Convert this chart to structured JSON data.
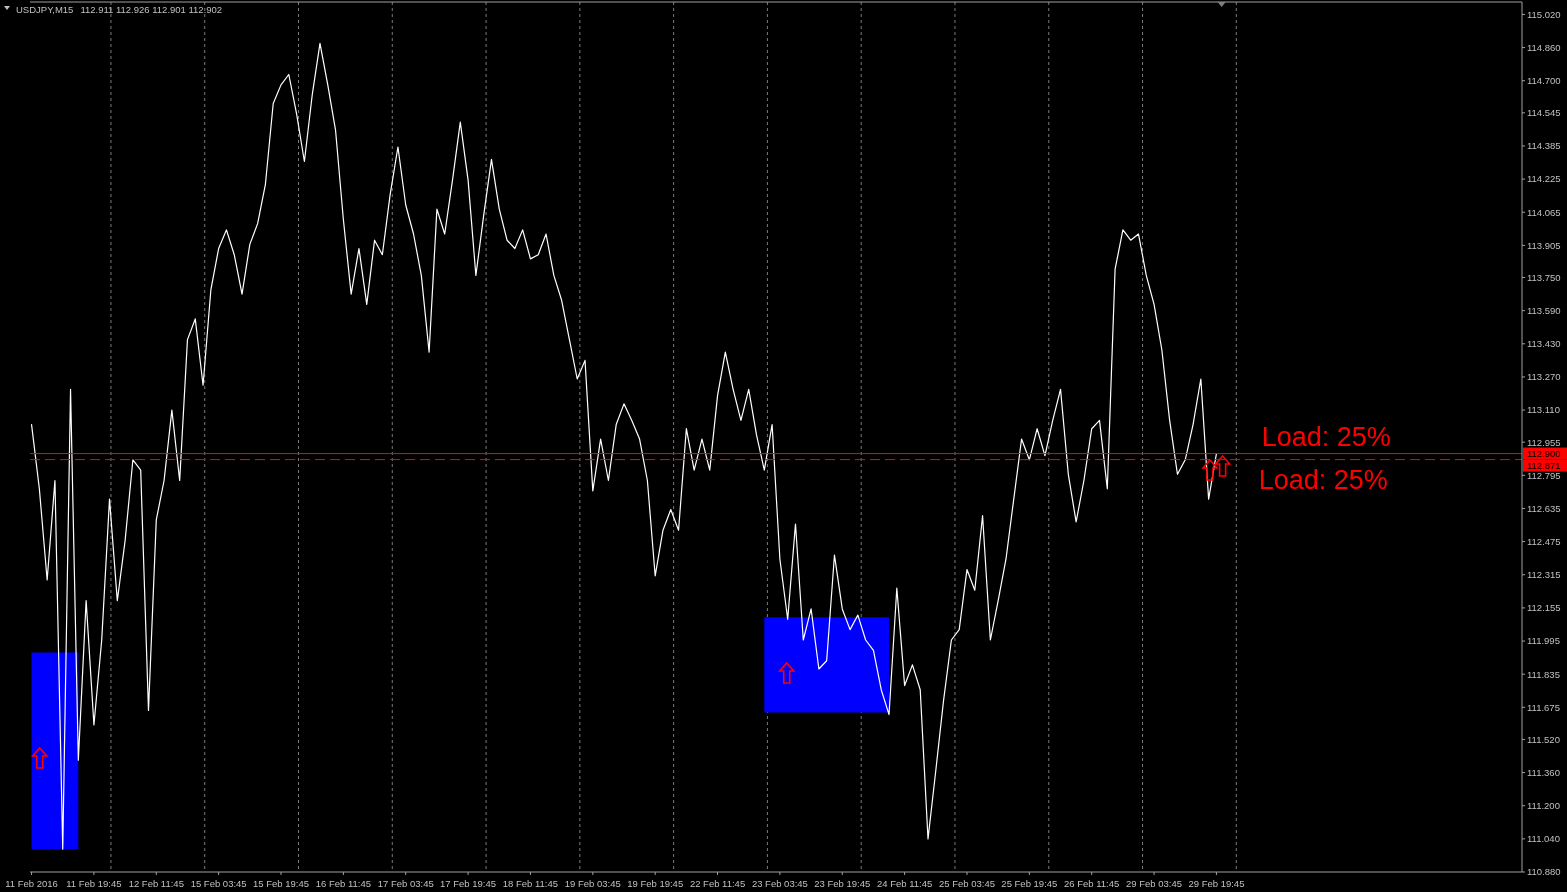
{
  "chart_data": {
    "type": "line",
    "title": "USDJPY,M15",
    "subtitle": "112.911 112.926 112.901 112.902",
    "categories": [
      "11 Feb 2016",
      null,
      null,
      null,
      null,
      null,
      null,
      null,
      "11 Feb 19:45",
      null,
      null,
      null,
      null,
      null,
      null,
      null,
      "12 Feb 11:45",
      null,
      null,
      null,
      null,
      null,
      null,
      null,
      "15 Feb 03:45",
      null,
      null,
      null,
      null,
      null,
      null,
      null,
      "15 Feb 19:45",
      null,
      null,
      null,
      null,
      null,
      null,
      null,
      "16 Feb 11:45",
      null,
      null,
      null,
      null,
      null,
      null,
      null,
      "17 Feb 03:45",
      null,
      null,
      null,
      null,
      null,
      null,
      null,
      "17 Feb 19:45",
      null,
      null,
      null,
      null,
      null,
      null,
      null,
      "18 Feb 11:45",
      null,
      null,
      null,
      null,
      null,
      null,
      null,
      "19 Feb 03:45",
      null,
      null,
      null,
      null,
      null,
      null,
      null,
      "19 Feb 19:45",
      null,
      null,
      null,
      null,
      null,
      null,
      null,
      "22 Feb 11:45",
      null,
      null,
      null,
      null,
      null,
      null,
      null,
      "23 Feb 03:45",
      null,
      null,
      null,
      null,
      null,
      null,
      null,
      "23 Feb 19:45",
      null,
      null,
      null,
      null,
      null,
      null,
      null,
      "24 Feb 11:45",
      null,
      null,
      null,
      null,
      null,
      null,
      null,
      "25 Feb 03:45",
      null,
      null,
      null,
      null,
      null,
      null,
      null,
      "25 Feb 19:45",
      null,
      null,
      null,
      null,
      null,
      null,
      null,
      "26 Feb 11:45",
      null,
      null,
      null,
      null,
      null,
      null,
      null,
      "29 Feb 03:45",
      null,
      null,
      null,
      null,
      null,
      null,
      null,
      "29 Feb 19:45",
      null,
      null,
      null,
      null,
      null,
      null,
      null,
      null,
      null,
      null,
      null,
      null,
      null,
      null,
      null,
      null,
      null,
      null,
      null,
      null,
      null,
      null,
      null,
      null,
      null,
      null,
      null,
      null,
      null,
      null,
      null,
      null,
      null,
      null,
      null,
      null,
      null,
      null,
      null
    ],
    "ylim": [
      110.88,
      115.08
    ],
    "yticks": [
      {
        "value": 115.02,
        "label": "115.020"
      },
      {
        "value": 114.86,
        "label": "114.860"
      },
      {
        "value": 114.7,
        "label": "114.700"
      },
      {
        "value": 114.545,
        "label": "114.545"
      },
      {
        "value": 114.385,
        "label": "114.385"
      },
      {
        "value": 114.225,
        "label": "114.225"
      },
      {
        "value": 114.065,
        "label": "114.065"
      },
      {
        "value": 113.905,
        "label": "113.905"
      },
      {
        "value": 113.75,
        "label": "113.750"
      },
      {
        "value": 113.59,
        "label": "113.590"
      },
      {
        "value": 113.43,
        "label": "113.430"
      },
      {
        "value": 113.27,
        "label": "113.270"
      },
      {
        "value": 113.11,
        "label": "113.110"
      },
      {
        "value": 112.955,
        "label": "112.955"
      },
      {
        "value": 112.795,
        "label": "112.795"
      },
      {
        "value": 112.635,
        "label": "112.635"
      },
      {
        "value": 112.475,
        "label": "112.475"
      },
      {
        "value": 112.315,
        "label": "112.315"
      },
      {
        "value": 112.155,
        "label": "112.155"
      },
      {
        "value": 111.995,
        "label": "111.995"
      },
      {
        "value": 111.835,
        "label": "111.835"
      },
      {
        "value": 111.675,
        "label": "111.675"
      },
      {
        "value": 111.52,
        "label": "111.520"
      },
      {
        "value": 111.36,
        "label": "111.360"
      },
      {
        "value": 111.2,
        "label": "111.200"
      },
      {
        "value": 111.04,
        "label": "111.040"
      },
      {
        "value": 110.88,
        "label": "110.880"
      }
    ],
    "series": [
      {
        "type": "area",
        "color": "#0000ff",
        "values": [
          null,
          null,
          null,
          null,
          null,
          null,
          null,
          null,
          null,
          null,
          null,
          null,
          null,
          null,
          null,
          null,
          null,
          null,
          null,
          null,
          null,
          null,
          null,
          null,
          null,
          null,
          null,
          null,
          null,
          null,
          null,
          null,
          null,
          null,
          null,
          null,
          null,
          null,
          null,
          null,
          null,
          null,
          null,
          null,
          null,
          null,
          null,
          null,
          null,
          null,
          null,
          null,
          null,
          null,
          null,
          null,
          null,
          null,
          null,
          null,
          null,
          null,
          null,
          null,
          null,
          null,
          null,
          null,
          null,
          null,
          null,
          null,
          null,
          null,
          null,
          null,
          null,
          null,
          null,
          null,
          null,
          null,
          null,
          null,
          null,
          null,
          null,
          null,
          null,
          null,
          null,
          null,
          null,
          null,
          null,
          null,
          null,
          null,
          null,
          null,
          null,
          null,
          null,
          null,
          null,
          null,
          null,
          null,
          null,
          null,
          null,
          null,
          null,
          null,
          null,
          null,
          null,
          null,
          null,
          null,
          null,
          null,
          null,
          null,
          null,
          null,
          null,
          null,
          null,
          null,
          null,
          null,
          null,
          null,
          null,
          null,
          null,
          null,
          null,
          null,
          null,
          null,
          null,
          null,
          null,
          null,
          null,
          null,
          null,
          null,
          null,
          null,
          null,
          null,
          null,
          null,
          null,
          null,
          null,
          null,
          null,
          null,
          null,
          null,
          null,
          null,
          null,
          null,
          null,
          null,
          null,
          null,
          null,
          null,
          null,
          null,
          null,
          null,
          null,
          null,
          null,
          null,
          null,
          null,
          null,
          null,
          null,
          null,
          null,
          null,
          null,
          null
        ],
        "lower": [
          110.99,
          110.99,
          110.99,
          110.99,
          110.99,
          110.99,
          110.99,
          null,
          null,
          null,
          null,
          null,
          null,
          null,
          null,
          null,
          null,
          null,
          null,
          null,
          null,
          null,
          null,
          null,
          null,
          null,
          null,
          null,
          null,
          null,
          null,
          null,
          null,
          null,
          null,
          null,
          null,
          null,
          null,
          null,
          null,
          null,
          null,
          null,
          null,
          null,
          null,
          null,
          null,
          null,
          null,
          null,
          null,
          null,
          null,
          null,
          null,
          null,
          null,
          null,
          null,
          null,
          null,
          null,
          null,
          null,
          null,
          null,
          null,
          null,
          null,
          null,
          null,
          null,
          null,
          null,
          null,
          null,
          null,
          null,
          null,
          null,
          null,
          null,
          null,
          null,
          null,
          null,
          null,
          null,
          null,
          null,
          null,
          null,
          null,
          null,
          null,
          null,
          null,
          null,
          null,
          null,
          null,
          null,
          null,
          null,
          null,
          null,
          null,
          null,
          null,
          null,
          null,
          null,
          null,
          null,
          null,
          null,
          null,
          null,
          null,
          null,
          null,
          null,
          null,
          null,
          null,
          null,
          null,
          null,
          null,
          null,
          null,
          null,
          null,
          null,
          null,
          null,
          null,
          null,
          null,
          null,
          null,
          null,
          null,
          null,
          null,
          null,
          null,
          null,
          null,
          null,
          null,
          null,
          null,
          null,
          null,
          null,
          null,
          null,
          null,
          null,
          null,
          null,
          null,
          null,
          null,
          null,
          null,
          null,
          null,
          null,
          null,
          null,
          null,
          null,
          null,
          null,
          null,
          null,
          null,
          null,
          null,
          null,
          null,
          null,
          null,
          null,
          null,
          null,
          null,
          null
        ],
        "upper": [
          111.94,
          111.94,
          111.94,
          111.94,
          111.94,
          111.94,
          111.94,
          null,
          null,
          null,
          null,
          null,
          null,
          null,
          null,
          null,
          null,
          null,
          null,
          null,
          null,
          null,
          null,
          null,
          null,
          null,
          null,
          null,
          null,
          null,
          null,
          null,
          null,
          null,
          null,
          null,
          null,
          null,
          null,
          null,
          null,
          null,
          null,
          null,
          null,
          null,
          null,
          null,
          null,
          null,
          null,
          null,
          null,
          null,
          null,
          null,
          null,
          null,
          null,
          null,
          null,
          null,
          null,
          null,
          null,
          null,
          null,
          null,
          null,
          null,
          null,
          null,
          null,
          null,
          null,
          null,
          null,
          null,
          null,
          null,
          null,
          null,
          null,
          null,
          null,
          null,
          null,
          null,
          null,
          null,
          null,
          null,
          null,
          null,
          null,
          null,
          null,
          null,
          null,
          null,
          null,
          null,
          null,
          null,
          null,
          null,
          null,
          null,
          null,
          null,
          null,
          null,
          null,
          null,
          null,
          null,
          null,
          null,
          null,
          null,
          null,
          null,
          null,
          null,
          null,
          null,
          null,
          null,
          null,
          null,
          null,
          null,
          null,
          null,
          null,
          null,
          null,
          null,
          null,
          null,
          null,
          null,
          null,
          null,
          null,
          null,
          null,
          null,
          null,
          null,
          null,
          null,
          null,
          null,
          null,
          null,
          null,
          null,
          null,
          null,
          null,
          null,
          null,
          null,
          null,
          null,
          null,
          null,
          null,
          null,
          null,
          null,
          null,
          null,
          null,
          null,
          null,
          null,
          null,
          null,
          null,
          null,
          null,
          null,
          null,
          null,
          null,
          null,
          null,
          null,
          null,
          null
        ]
      },
      {
        "type": "area",
        "color": "#0000ff",
        "values": [
          null,
          null,
          null,
          null,
          null,
          null,
          null,
          null,
          null,
          null,
          null,
          null,
          null,
          null,
          null,
          null,
          null,
          null,
          null,
          null,
          null,
          null,
          null,
          null,
          null,
          null,
          null,
          null,
          null,
          null,
          null,
          null,
          null,
          null,
          null,
          null,
          null,
          null,
          null,
          null,
          null,
          null,
          null,
          null,
          null,
          null,
          null,
          null,
          null,
          null,
          null,
          null,
          null,
          null,
          null,
          null,
          null,
          null,
          null,
          null,
          null,
          null,
          null,
          null,
          null,
          null,
          null,
          null,
          null,
          null,
          null,
          null,
          null,
          null,
          null,
          null,
          null,
          null,
          null,
          null,
          null,
          null,
          null,
          null,
          null,
          null,
          null,
          null,
          null,
          null,
          null,
          null,
          null,
          null,
          null,
          null,
          null,
          null,
          null,
          null,
          null,
          null,
          null,
          null,
          null,
          null,
          null,
          null,
          null,
          null,
          null,
          null,
          null,
          null,
          null,
          null,
          null,
          null,
          null,
          null,
          null,
          null,
          null,
          null,
          null,
          null,
          null,
          null,
          null,
          null,
          null,
          null,
          null,
          null,
          null,
          null,
          null,
          null,
          null,
          null,
          null,
          null,
          null,
          null,
          null,
          null,
          null,
          null,
          null,
          null,
          null,
          null,
          null,
          null,
          null,
          null,
          null,
          null,
          null,
          null,
          null,
          null,
          null,
          null,
          null,
          null,
          null,
          null,
          null,
          null,
          null,
          null,
          null,
          null,
          null,
          null,
          null,
          null,
          null,
          null,
          null,
          null,
          null,
          null,
          null,
          null,
          null,
          null,
          null,
          null,
          null,
          null
        ],
        "lower": [
          null,
          null,
          null,
          null,
          null,
          null,
          null,
          null,
          null,
          null,
          null,
          null,
          null,
          null,
          null,
          null,
          null,
          null,
          null,
          null,
          null,
          null,
          null,
          null,
          null,
          null,
          null,
          null,
          null,
          null,
          null,
          null,
          null,
          null,
          null,
          null,
          null,
          null,
          null,
          null,
          null,
          null,
          null,
          null,
          null,
          null,
          null,
          null,
          null,
          null,
          null,
          null,
          null,
          null,
          null,
          null,
          null,
          null,
          null,
          null,
          null,
          null,
          null,
          null,
          null,
          null,
          null,
          null,
          null,
          null,
          null,
          null,
          null,
          null,
          null,
          null,
          null,
          null,
          null,
          null,
          null,
          null,
          null,
          null,
          null,
          null,
          null,
          null,
          null,
          null,
          null,
          null,
          null,
          null,
          111.65,
          111.65,
          111.65,
          111.65,
          111.65,
          111.65,
          111.65,
          111.65,
          111.65,
          111.65,
          111.65,
          111.65,
          111.65,
          111.65,
          111.65,
          111.65,
          111.65,
          null,
          null,
          null,
          null,
          null,
          null,
          null,
          null,
          null,
          null,
          null,
          null,
          null,
          null,
          null,
          null,
          null,
          null,
          null,
          null,
          null,
          null,
          null,
          null,
          null,
          null,
          null,
          null,
          null,
          null,
          null,
          null,
          null,
          null,
          null,
          null,
          null,
          null,
          null,
          null,
          null,
          null,
          null,
          null,
          null,
          null,
          null,
          null,
          null,
          null,
          null,
          null,
          null,
          null,
          null,
          null,
          null,
          null,
          null,
          null,
          null,
          null,
          null,
          null,
          null,
          null,
          null,
          null,
          null,
          null,
          null,
          null,
          null,
          null,
          null,
          null,
          null,
          null,
          null,
          null,
          null
        ],
        "upper": [
          null,
          null,
          null,
          null,
          null,
          null,
          null,
          null,
          null,
          null,
          null,
          null,
          null,
          null,
          null,
          null,
          null,
          null,
          null,
          null,
          null,
          null,
          null,
          null,
          null,
          null,
          null,
          null,
          null,
          null,
          null,
          null,
          null,
          null,
          null,
          null,
          null,
          null,
          null,
          null,
          null,
          null,
          null,
          null,
          null,
          null,
          null,
          null,
          null,
          null,
          null,
          null,
          null,
          null,
          null,
          null,
          null,
          null,
          null,
          null,
          null,
          null,
          null,
          null,
          null,
          null,
          null,
          null,
          null,
          null,
          null,
          null,
          null,
          null,
          null,
          null,
          null,
          null,
          null,
          null,
          null,
          null,
          null,
          null,
          null,
          null,
          null,
          null,
          null,
          null,
          null,
          null,
          null,
          null,
          112.11,
          112.11,
          112.11,
          112.11,
          112.11,
          112.11,
          112.11,
          112.11,
          112.11,
          112.11,
          112.11,
          112.11,
          112.11,
          112.11,
          112.11,
          112.11,
          112.11,
          null,
          null,
          null,
          null,
          null,
          null,
          null,
          null,
          null,
          null,
          null,
          null,
          null,
          null,
          null,
          null,
          null,
          null,
          null,
          null,
          null,
          null,
          null,
          null,
          null,
          null,
          null,
          null,
          null,
          null,
          null,
          null,
          null,
          null,
          null,
          null,
          null,
          null,
          null,
          null,
          null,
          null,
          null,
          null,
          null,
          null,
          null,
          null,
          null,
          null,
          null,
          null,
          null,
          null,
          null,
          null,
          null,
          null,
          null,
          null,
          null,
          null,
          null,
          null,
          null,
          null,
          null,
          null,
          null,
          null,
          null,
          null,
          null,
          null,
          null,
          null,
          null,
          null,
          null,
          null,
          null
        ]
      },
      {
        "color": "#ffffff",
        "values": [
          113.04,
          112.73,
          112.29,
          112.77,
          110.99,
          113.21,
          111.42,
          112.19,
          111.59,
          112.0,
          112.68,
          112.19,
          112.48,
          112.87,
          112.82,
          111.66,
          112.58,
          112.77,
          113.11,
          112.77,
          113.45,
          113.55,
          113.23,
          113.69,
          113.89,
          113.98,
          113.86,
          113.67,
          113.91,
          114.01,
          114.2,
          114.59,
          114.68,
          114.73,
          114.54,
          114.31,
          114.63,
          114.88,
          114.68,
          114.46,
          114.03,
          113.67,
          113.89,
          113.62,
          113.93,
          113.86,
          114.15,
          114.38,
          114.1,
          113.96,
          113.76,
          113.39,
          114.08,
          113.96,
          114.22,
          114.5,
          114.22,
          113.76,
          114.05,
          114.32,
          114.08,
          113.93,
          113.89,
          113.98,
          113.84,
          113.86,
          113.96,
          113.76,
          113.64,
          113.45,
          113.26,
          113.35,
          112.72,
          112.97,
          112.77,
          113.04,
          113.14,
          113.06,
          112.97,
          112.77,
          112.31,
          112.53,
          112.63,
          112.53,
          113.02,
          112.82,
          112.97,
          112.82,
          113.18,
          113.39,
          113.21,
          113.06,
          113.21,
          112.99,
          112.82,
          113.04,
          112.39,
          112.1,
          112.56,
          112.0,
          112.15,
          111.86,
          111.9,
          112.41,
          112.15,
          112.05,
          112.12,
          112.0,
          111.95,
          111.76,
          111.64,
          112.25,
          111.78,
          111.88,
          111.76,
          111.04,
          111.37,
          111.71,
          112.0,
          112.05,
          112.34,
          112.24,
          112.6,
          112.0,
          112.19,
          112.39,
          112.68,
          112.97,
          112.87,
          113.02,
          112.89,
          113.06,
          113.21,
          112.8,
          112.57,
          112.77,
          113.02,
          113.06,
          112.73,
          113.79,
          113.98,
          113.93,
          113.96,
          113.76,
          113.62,
          113.4,
          113.06,
          112.8,
          112.87,
          113.04,
          113.26,
          112.68,
          112.9,
          null,
          null,
          null,
          null,
          null,
          null,
          null,
          null,
          null,
          null,
          null,
          null,
          null,
          null,
          null,
          null,
          null,
          null,
          null,
          null,
          null,
          null,
          null,
          null,
          null,
          null,
          null,
          null,
          null,
          null,
          null,
          null,
          null,
          null,
          null,
          null,
          null,
          null,
          null
        ]
      }
    ],
    "ref_lines": [
      {
        "axis": "y",
        "value": 112.9,
        "label": "112.900",
        "color": "#ff0000",
        "line_style": "solid"
      },
      {
        "axis": "y",
        "value": 112.871,
        "label": "112.871",
        "color": "#ff0000",
        "line_style": "dashed"
      }
    ],
    "annotations": [
      "Load: 25%",
      "Load: 25%"
    ]
  }
}
